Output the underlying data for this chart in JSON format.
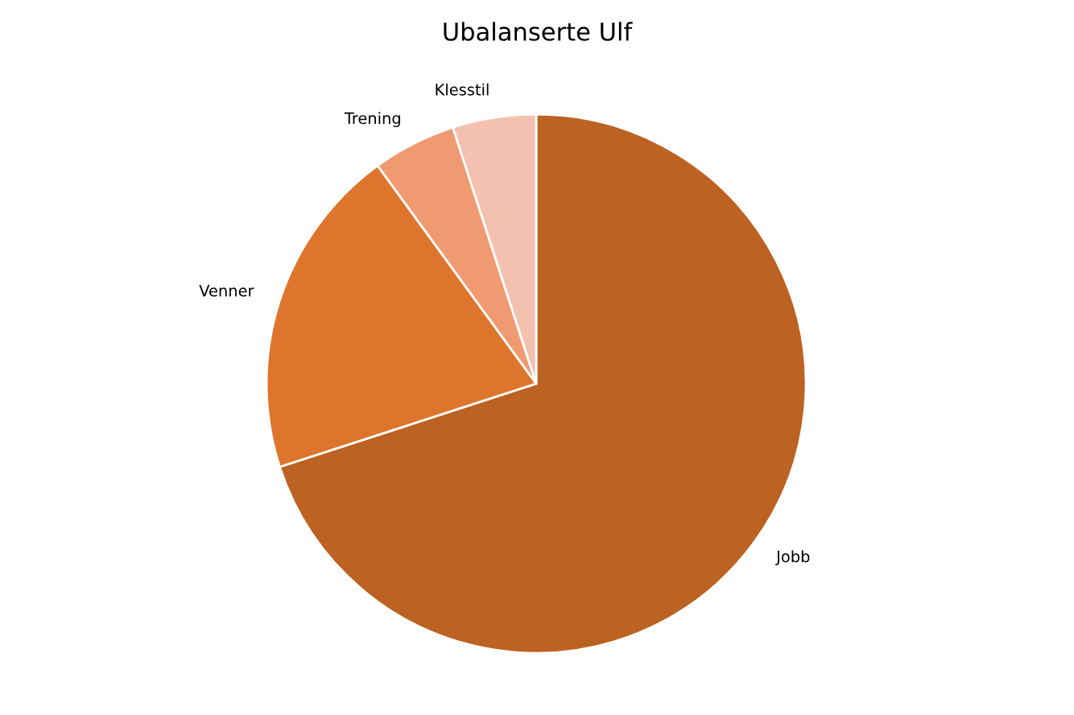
{
  "chart_data": {
    "type": "pie",
    "title": "Ubalanserte Ulf",
    "categories": [
      "Jobb",
      "Venner",
      "Trening",
      "Klesstil"
    ],
    "values": [
      70,
      20,
      5,
      5
    ],
    "colors": [
      "#bc6222",
      "#de752d",
      "#f09a72",
      "#f4c1b0"
    ]
  }
}
